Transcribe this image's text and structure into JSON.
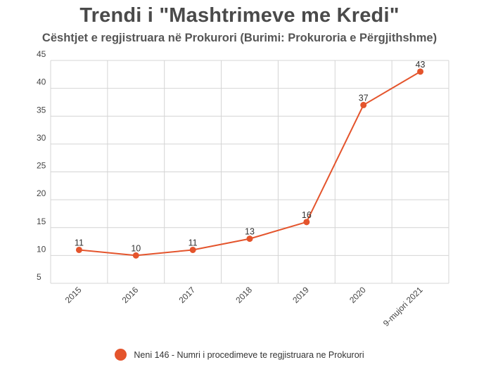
{
  "chart_data": {
    "type": "line",
    "title": "Trendi i \"Mashtrimeve me Kredi\"",
    "subtitle": "Cështjet e regjistruara në Prokurori (Burimi: Prokuroria e Përgjithshme)",
    "categories": [
      "2015",
      "2016",
      "2017",
      "2018",
      "2019",
      "2020",
      "9-mujori 2021"
    ],
    "series": [
      {
        "name": "Neni 146 - Numri i procedimeve te regjistruara ne Prokurori",
        "values": [
          11,
          10,
          11,
          13,
          16,
          37,
          43
        ],
        "color": "#e4542c"
      }
    ],
    "ylim": [
      5,
      45
    ],
    "yticks": [
      5,
      10,
      15,
      20,
      25,
      30,
      35,
      40,
      45
    ],
    "xlabel": "",
    "ylabel": "",
    "grid": true,
    "legend": "bottom-center",
    "data_labels": true
  }
}
